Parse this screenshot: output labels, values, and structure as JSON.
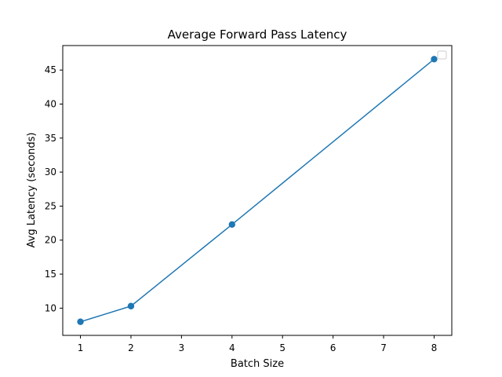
{
  "chart_data": {
    "type": "line",
    "title": "Average Forward Pass Latency",
    "xlabel": "Batch Size",
    "ylabel": "Avg Latency (seconds)",
    "x": [
      1,
      2,
      4,
      8
    ],
    "series": [
      {
        "values": [
          8.0,
          10.3,
          22.3,
          46.6
        ],
        "color": "#1f77b4",
        "marker": "circle"
      }
    ],
    "xlim": [
      0.65,
      8.35
    ],
    "ylim": [
      6.0,
      48.6
    ],
    "xticks": [
      1,
      2,
      3,
      4,
      5,
      6,
      7,
      8
    ],
    "yticks": [
      10,
      15,
      20,
      25,
      30,
      35,
      40,
      45
    ],
    "grid": false,
    "legend": {
      "placement": "top-right",
      "entries": []
    }
  }
}
